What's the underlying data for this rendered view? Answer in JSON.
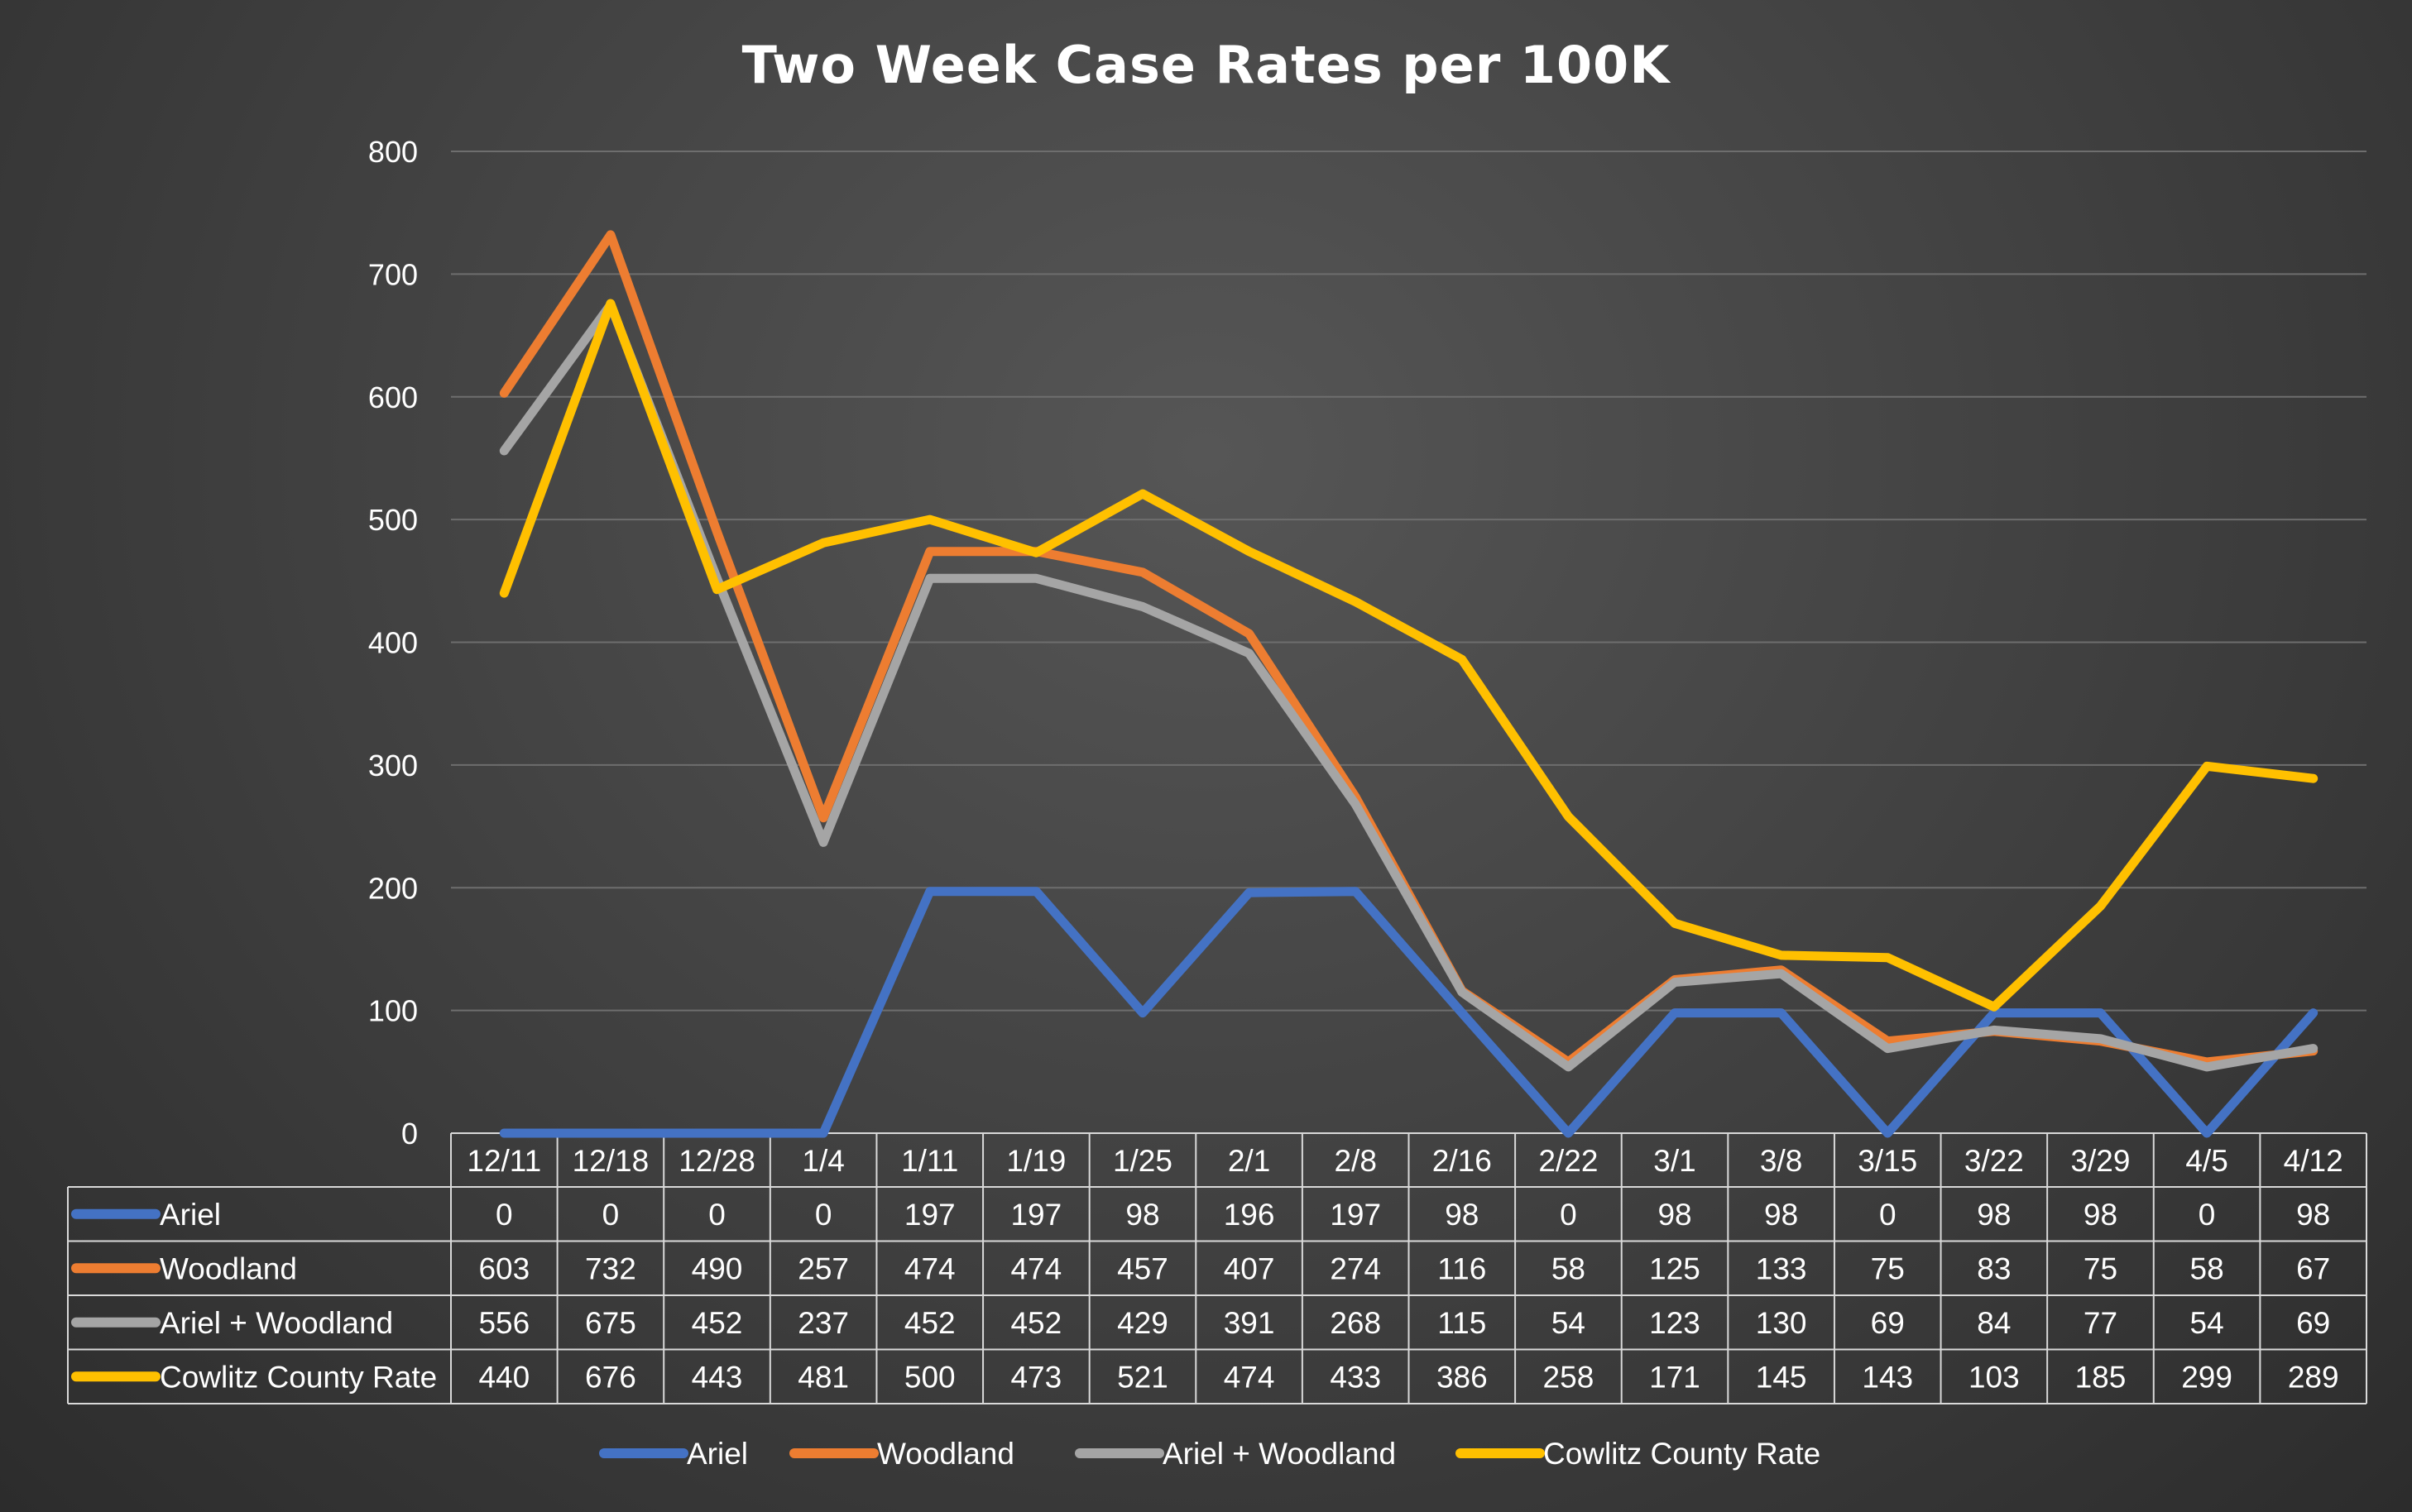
{
  "chart_data": {
    "type": "line",
    "title": "Two Week Case Rates per 100K",
    "categories": [
      "12/11",
      "12/18",
      "12/28",
      "1/4",
      "1/11",
      "1/19",
      "1/25",
      "2/1",
      "2/8",
      "2/16",
      "2/22",
      "3/1",
      "3/8",
      "3/15",
      "3/22",
      "3/29",
      "4/5",
      "4/12"
    ],
    "y_ticks": [
      "0",
      "100",
      "200",
      "300",
      "400",
      "500",
      "600",
      "700",
      "800"
    ],
    "ylim": [
      0,
      800
    ],
    "grid": true,
    "legend_position": "bottom",
    "data_table": true,
    "series": [
      {
        "name": "Ariel",
        "color": "#4472c4",
        "values": [
          0,
          0,
          0,
          0,
          197,
          197,
          98,
          196,
          197,
          98,
          0,
          98,
          98,
          0,
          98,
          98,
          0,
          98
        ]
      },
      {
        "name": "Woodland",
        "color": "#ed7d31",
        "values": [
          603,
          732,
          490,
          257,
          474,
          474,
          457,
          407,
          274,
          116,
          58,
          125,
          133,
          75,
          83,
          75,
          58,
          67
        ]
      },
      {
        "name": "Ariel + Woodland",
        "color": "#a5a5a5",
        "values": [
          556,
          675,
          452,
          237,
          452,
          452,
          429,
          391,
          268,
          115,
          54,
          123,
          130,
          69,
          84,
          77,
          54,
          69
        ]
      },
      {
        "name": "Cowlitz County Rate",
        "color": "#ffc000",
        "values": [
          440,
          676,
          443,
          481,
          500,
          473,
          521,
          474,
          433,
          386,
          258,
          171,
          145,
          143,
          103,
          185,
          299,
          289
        ]
      }
    ]
  }
}
